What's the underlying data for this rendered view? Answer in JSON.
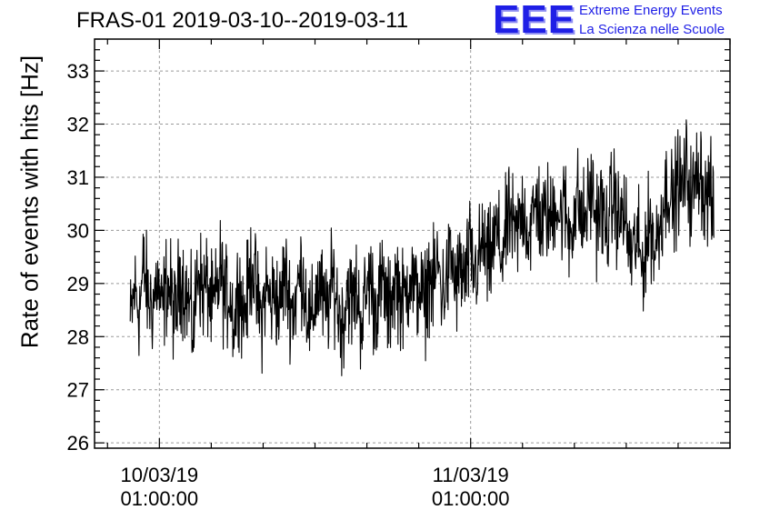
{
  "header": {
    "title": "FRAS-01 2019-03-10--2019-03-11",
    "logo_text": "EEE",
    "logo_line1": "Extreme Energy Events",
    "logo_line2": "La Scienza nelle Scuole"
  },
  "colors": {
    "logo": "#1f1fe6",
    "line": "#000000",
    "grid": "#9a9a9a"
  },
  "chart_data": {
    "type": "line",
    "title": "FRAS-01 2019-03-10--2019-03-11",
    "xlabel": "",
    "ylabel": "Rate of events with hits [Hz]",
    "x_axis": "time",
    "xlim": [
      "2019-03-09T20:00:00",
      "2019-03-11T21:00:00"
    ],
    "ylim": [
      25.9,
      33.6
    ],
    "grid": true,
    "x_ticks": [
      {
        "date": "10/03/19",
        "time": "01:00:00"
      },
      {
        "date": "11/03/19",
        "time": "01:00:00"
      }
    ],
    "y_ticks": [
      26,
      27,
      28,
      29,
      30,
      31,
      32,
      33
    ],
    "series": [
      {
        "x_start": "2019-03-09T22:45:00",
        "x_end": "2019-03-11T19:45:00",
        "values": [
          28.2,
          28.9,
          28.5,
          29.3,
          28.7,
          28.6,
          29.1,
          28.4,
          29.0,
          28.8,
          28.3,
          29.2,
          28.9,
          28.6,
          28.1,
          29.4,
          28.8,
          29.0,
          28.5,
          28.7,
          29.3,
          28.6,
          28.9,
          28.2,
          29.1,
          28.4,
          28.8,
          29.5,
          28.7,
          28.3,
          29.0,
          28.6,
          28.9,
          28.4,
          29.2,
          28.8,
          28.5,
          28.9,
          29.3,
          28.6,
          28.1,
          28.8,
          29.0,
          28.4,
          28.7,
          29.1,
          28.5,
          28.2,
          29.0,
          28.6,
          28.9,
          28.3,
          28.7,
          29.2,
          28.5,
          28.8,
          29.0,
          28.4,
          28.9,
          29.1,
          28.6,
          28.8,
          29.3,
          28.7,
          29.0,
          28.5,
          29.2,
          28.9,
          29.4,
          28.8,
          29.1,
          29.5,
          28.9,
          29.3,
          29.0,
          29.6,
          29.2,
          29.4,
          29.8,
          29.3,
          29.6,
          30.0,
          29.5,
          29.9,
          30.3,
          29.8,
          30.1,
          30.5,
          29.9,
          30.2,
          30.6,
          30.0,
          30.4,
          30.1,
          30.7,
          30.2,
          30.5,
          29.9,
          30.3,
          30.6,
          30.1,
          30.4,
          30.8,
          30.2,
          30.5,
          30.0,
          30.3,
          30.7,
          30.1,
          30.4,
          29.8,
          29.5,
          29.9,
          29.3,
          29.7,
          30.2,
          29.6,
          30.1,
          30.6,
          30.9,
          30.4,
          31.0,
          30.7,
          31.2,
          30.6,
          30.9,
          31.3,
          30.5,
          30.8,
          30.2
        ]
      }
    ]
  }
}
